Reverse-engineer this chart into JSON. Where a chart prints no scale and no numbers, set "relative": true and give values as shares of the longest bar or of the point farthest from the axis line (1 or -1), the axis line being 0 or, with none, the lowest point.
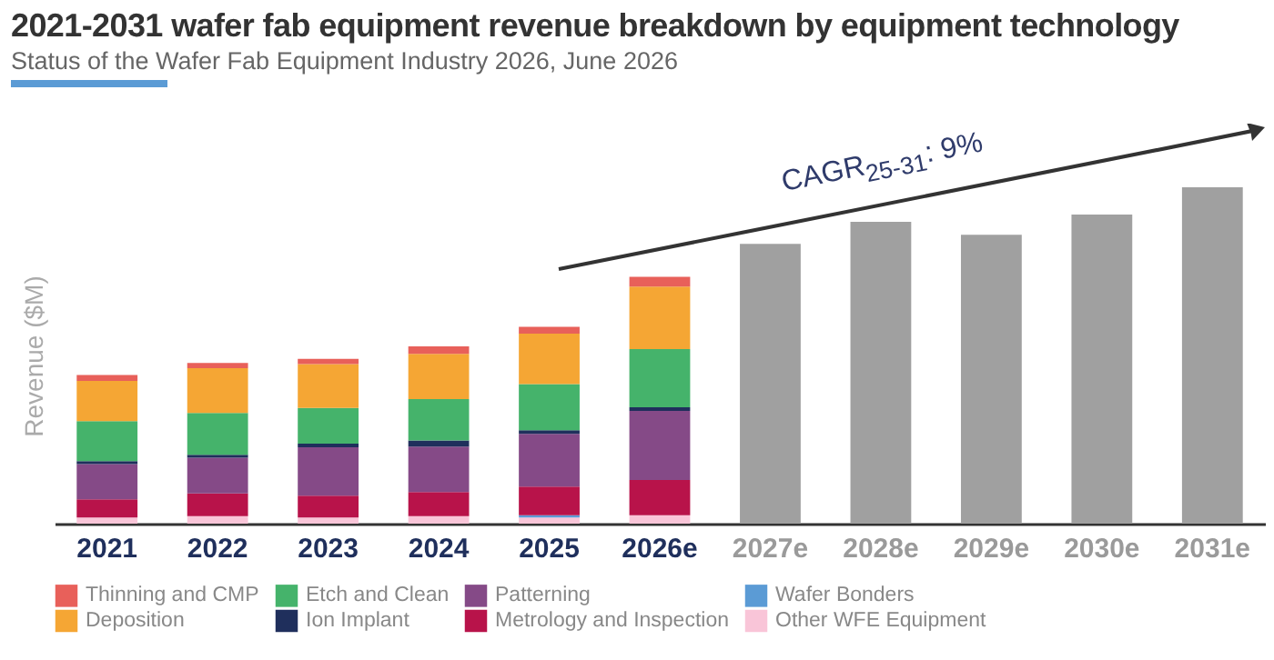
{
  "chart_data": {
    "type": "bar",
    "title": "2021-2031 wafer fab equipment revenue breakdown by equipment technology",
    "subtitle": "Status of the Wafer Fab Equipment Industry 2026, June 2026",
    "ylabel": "Revenue ($M)",
    "relative": true,
    "stacked": true,
    "legend": "bottom",
    "categories": [
      "2021",
      "2022",
      "2023",
      "2024",
      "2025",
      "2026e",
      "2027e",
      "2028e",
      "2029e",
      "2030e",
      "2031e"
    ],
    "series": [
      {
        "name": "Other WFE Equipment",
        "color": "#f9c5d8",
        "values": [
          0.018,
          0.022,
          0.018,
          0.022,
          0.018,
          0.025,
          null,
          null,
          null,
          null,
          null
        ]
      },
      {
        "name": "Wafer Bonders",
        "color": "#5b9bd5",
        "values": [
          0,
          0,
          0,
          0,
          0.007,
          0,
          null,
          null,
          null,
          null,
          null
        ]
      },
      {
        "name": "Metrology and Inspection",
        "color": "#b8134a",
        "values": [
          0.054,
          0.068,
          0.065,
          0.072,
          0.085,
          0.105,
          null,
          null,
          null,
          null,
          null
        ]
      },
      {
        "name": "Patterning",
        "color": "#854a87",
        "values": [
          0.105,
          0.106,
          0.144,
          0.135,
          0.157,
          0.205,
          null,
          null,
          null,
          null,
          null
        ]
      },
      {
        "name": "Ion Implant",
        "color": "#1f2f5c",
        "values": [
          0.009,
          0.009,
          0.011,
          0.018,
          0.011,
          0.011,
          null,
          null,
          null,
          null,
          null
        ]
      },
      {
        "name": "Etch and Clean",
        "color": "#45b36b",
        "values": [
          0.119,
          0.124,
          0.106,
          0.123,
          0.137,
          0.173,
          null,
          null,
          null,
          null,
          null
        ]
      },
      {
        "name": "Deposition",
        "color": "#f5a634",
        "values": [
          0.119,
          0.133,
          0.13,
          0.135,
          0.15,
          0.186,
          null,
          null,
          null,
          null,
          null
        ]
      },
      {
        "name": "Thinning and CMP",
        "color": "#e8605a",
        "values": [
          0.018,
          0.016,
          0.016,
          0.022,
          0.02,
          0.029,
          null,
          null,
          null,
          null,
          null
        ]
      },
      {
        "color": "#a0a0a0",
        "values": [
          null,
          null,
          null,
          null,
          null,
          null,
          0.832,
          0.897,
          0.859,
          0.919,
          1
        ]
      }
    ],
    "annotations": [
      "CAGR$_{25-31}$: 9%"
    ]
  }
}
